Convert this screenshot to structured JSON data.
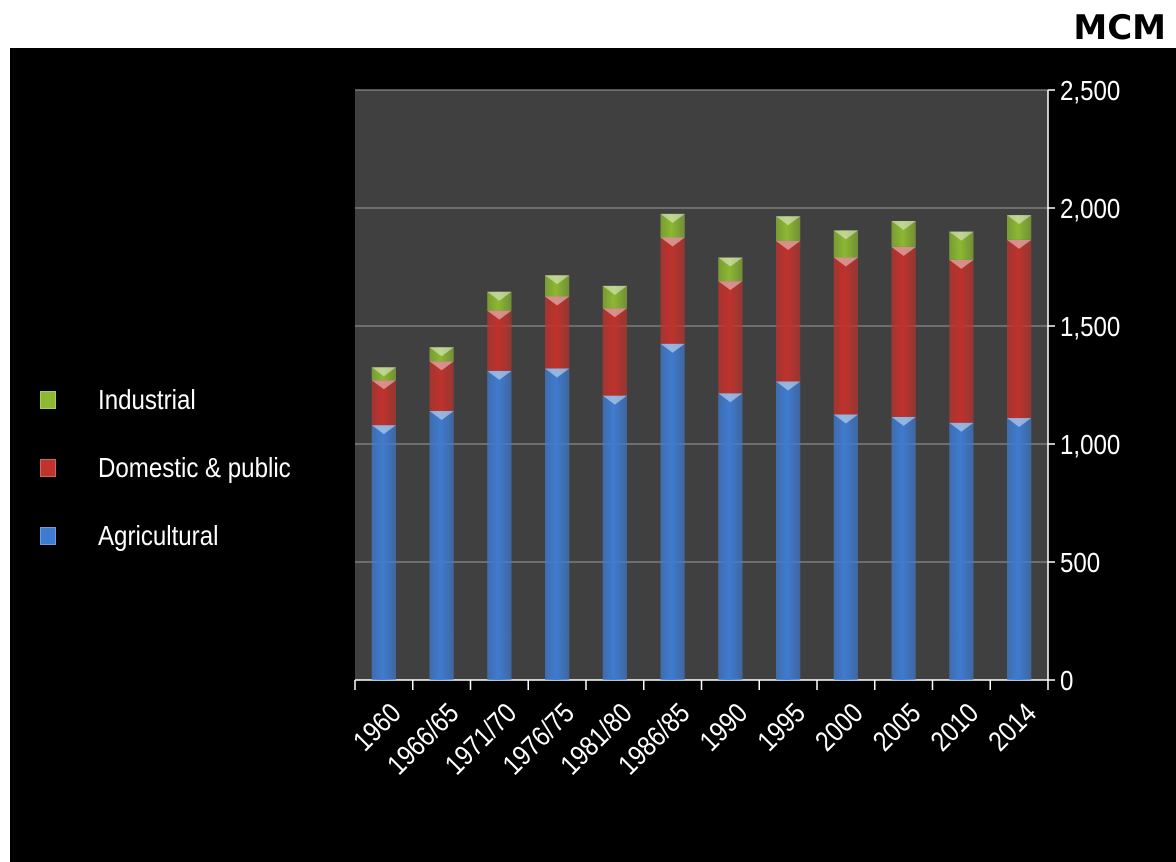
{
  "unit": "MCM",
  "legend": [
    {
      "name": "Industrial",
      "color": "#8cb832"
    },
    {
      "name": "Domestic & public",
      "color": "#c0322c"
    },
    {
      "name": "Agricultural",
      "color": "#3f7bd0"
    }
  ],
  "chart_data": {
    "type": "bar",
    "stacked": true,
    "categories": [
      "1960",
      "1966/65",
      "1971/70",
      "1976/75",
      "1981/80",
      "1986/85",
      "1990",
      "1995",
      "2000",
      "2005",
      "2010",
      "2014"
    ],
    "series": [
      {
        "name": "Agricultural",
        "color": "#3f7bd0",
        "values": [
          1080,
          1140,
          1310,
          1320,
          1205,
          1425,
          1215,
          1265,
          1125,
          1115,
          1090,
          1110
        ]
      },
      {
        "name": "Domestic & public",
        "color": "#c0322c",
        "values": [
          190,
          210,
          255,
          305,
          370,
          450,
          475,
          595,
          665,
          720,
          690,
          755
        ]
      },
      {
        "name": "Industrial",
        "color": "#8cb832",
        "values": [
          55,
          60,
          80,
          90,
          95,
          100,
          100,
          105,
          115,
          110,
          120,
          105
        ]
      }
    ],
    "yticks": [
      "0",
      "500",
      "1,000",
      "1,500",
      "2,000",
      "2,500"
    ],
    "ylim": [
      0,
      2500
    ],
    "grid": true,
    "legend_position": "left",
    "yaxis_side": "right"
  }
}
